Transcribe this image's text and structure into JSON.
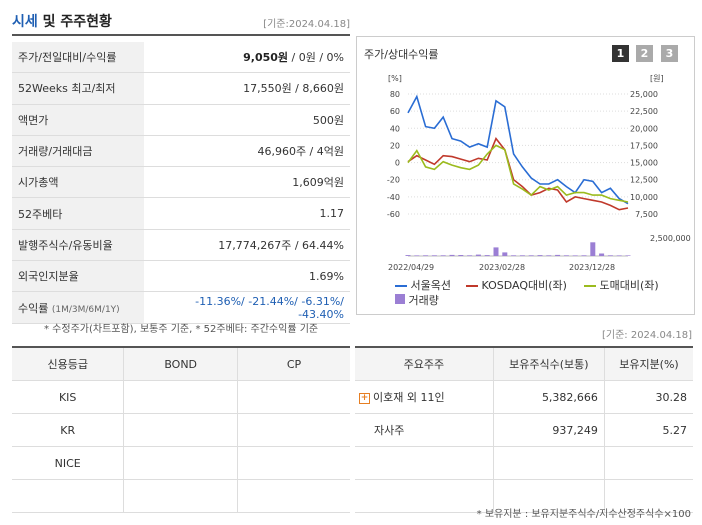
{
  "header": {
    "title_blue": "시세",
    "title_rest": " 및 주주현황",
    "date": "[기준:2024.04.18]"
  },
  "price_table": [
    {
      "label": "주가/전일대비/수익률",
      "value_bold": "9,050원",
      "value_rest": " / 0원 / 0%"
    },
    {
      "label": "52Weeks 최고/최저",
      "value": "17,550원 / 8,660원"
    },
    {
      "label": "액면가",
      "value": "500원"
    },
    {
      "label": "거래량/거래대금",
      "value": "46,960주 / 4억원"
    },
    {
      "label": "시가총액",
      "value": "1,609억원"
    },
    {
      "label": "52주베타",
      "value": "1.17"
    },
    {
      "label": "발행주식수/유동비율",
      "value": "17,774,267주 / 64.44%"
    },
    {
      "label": "외국인지분율",
      "value": "1.69%"
    },
    {
      "label": "수익률",
      "label_small": "(1M/3M/6M/1Y)",
      "value": "-11.36%/ -21.44%/ -6.31%/ -43.40%"
    }
  ],
  "note_price": "* 수정주가(차트포함), 보통주 기준, * 52주베타: 주간수익률 기준",
  "chart_panel": {
    "title": "주가/상대수익률",
    "pages": [
      "1",
      "2",
      "3"
    ],
    "page_colors": [
      "#333333",
      "#aaaaaa",
      "#aaaaaa"
    ]
  },
  "chart_data": {
    "type": "line",
    "left_unit": "[%]",
    "right_unit": "[원]",
    "left_ticks": [
      "80",
      "60",
      "40",
      "20",
      "0",
      "-20",
      "-40",
      "-60"
    ],
    "right_ticks": [
      "25,000",
      "22,500",
      "20,000",
      "17,500",
      "15,000",
      "12,500",
      "10,000",
      "7,500"
    ],
    "volume_tick": "2,500,000",
    "x_labels": [
      "2022/04/29",
      "2023/02/28",
      "2023/12/28"
    ],
    "ylim_left": [
      -60,
      80
    ],
    "series": [
      {
        "name": "서울옥션",
        "color": "#2a6dd4",
        "values": [
          58,
          77,
          42,
          40,
          53,
          28,
          25,
          18,
          22,
          18,
          72,
          65,
          10,
          -5,
          -18,
          -25,
          -25,
          -20,
          -28,
          -35,
          -20,
          -22,
          -35,
          -30,
          -42,
          -48
        ]
      },
      {
        "name": "KOSDAQ대비(좌)",
        "color": "#c0392b",
        "values": [
          1,
          8,
          3,
          -2,
          8,
          7,
          4,
          1,
          5,
          3,
          28,
          15,
          -20,
          -28,
          -38,
          -35,
          -30,
          -32,
          -46,
          -40,
          -42,
          -44,
          -46,
          -50,
          -55,
          -53
        ]
      },
      {
        "name": "도매대비(좌)",
        "color": "#9bbb1e",
        "values": [
          0,
          14,
          -5,
          -8,
          1,
          -3,
          -6,
          -8,
          -3,
          10,
          20,
          15,
          -25,
          -31,
          -38,
          -28,
          -32,
          -28,
          -38,
          -35,
          -35,
          -38,
          -38,
          -42,
          -44,
          -46
        ]
      },
      {
        "name": "거래량",
        "color": "#9b7fd4",
        "values": [
          0.12,
          0.08,
          0.1,
          0.1,
          0.1,
          0.15,
          0.14,
          0.1,
          0.2,
          0.12,
          1.2,
          0.5,
          0.1,
          0.1,
          0.1,
          0.12,
          0.1,
          0.15,
          0.1,
          0.08,
          0.1,
          1.9,
          0.35,
          0.1,
          0.08,
          0.08
        ]
      }
    ]
  },
  "note_holder_date": "[기준: 2024.04.18]",
  "credit_table": {
    "headers": [
      "신용등급",
      "BOND",
      "CP"
    ],
    "rows": [
      [
        "KIS",
        "",
        ""
      ],
      [
        "KR",
        "",
        ""
      ],
      [
        "NICE",
        "",
        ""
      ],
      [
        "",
        "",
        ""
      ]
    ]
  },
  "holder_table": {
    "headers": [
      "주요주주",
      "보유주식수(보통)",
      "보유지분(%)"
    ],
    "rows": [
      {
        "name": "이호재 외 11인",
        "shares": "5,382,666",
        "pct": "30.28",
        "expand": true
      },
      {
        "name": "자사주",
        "shares": "937,249",
        "pct": "5.27",
        "expand": false
      },
      {
        "name": "",
        "shares": "",
        "pct": "",
        "expand": false
      },
      {
        "name": "",
        "shares": "",
        "pct": "",
        "expand": false
      }
    ]
  },
  "note_holder": "* 보유지분 : 보유지분주식수/지수산정주식수×100"
}
